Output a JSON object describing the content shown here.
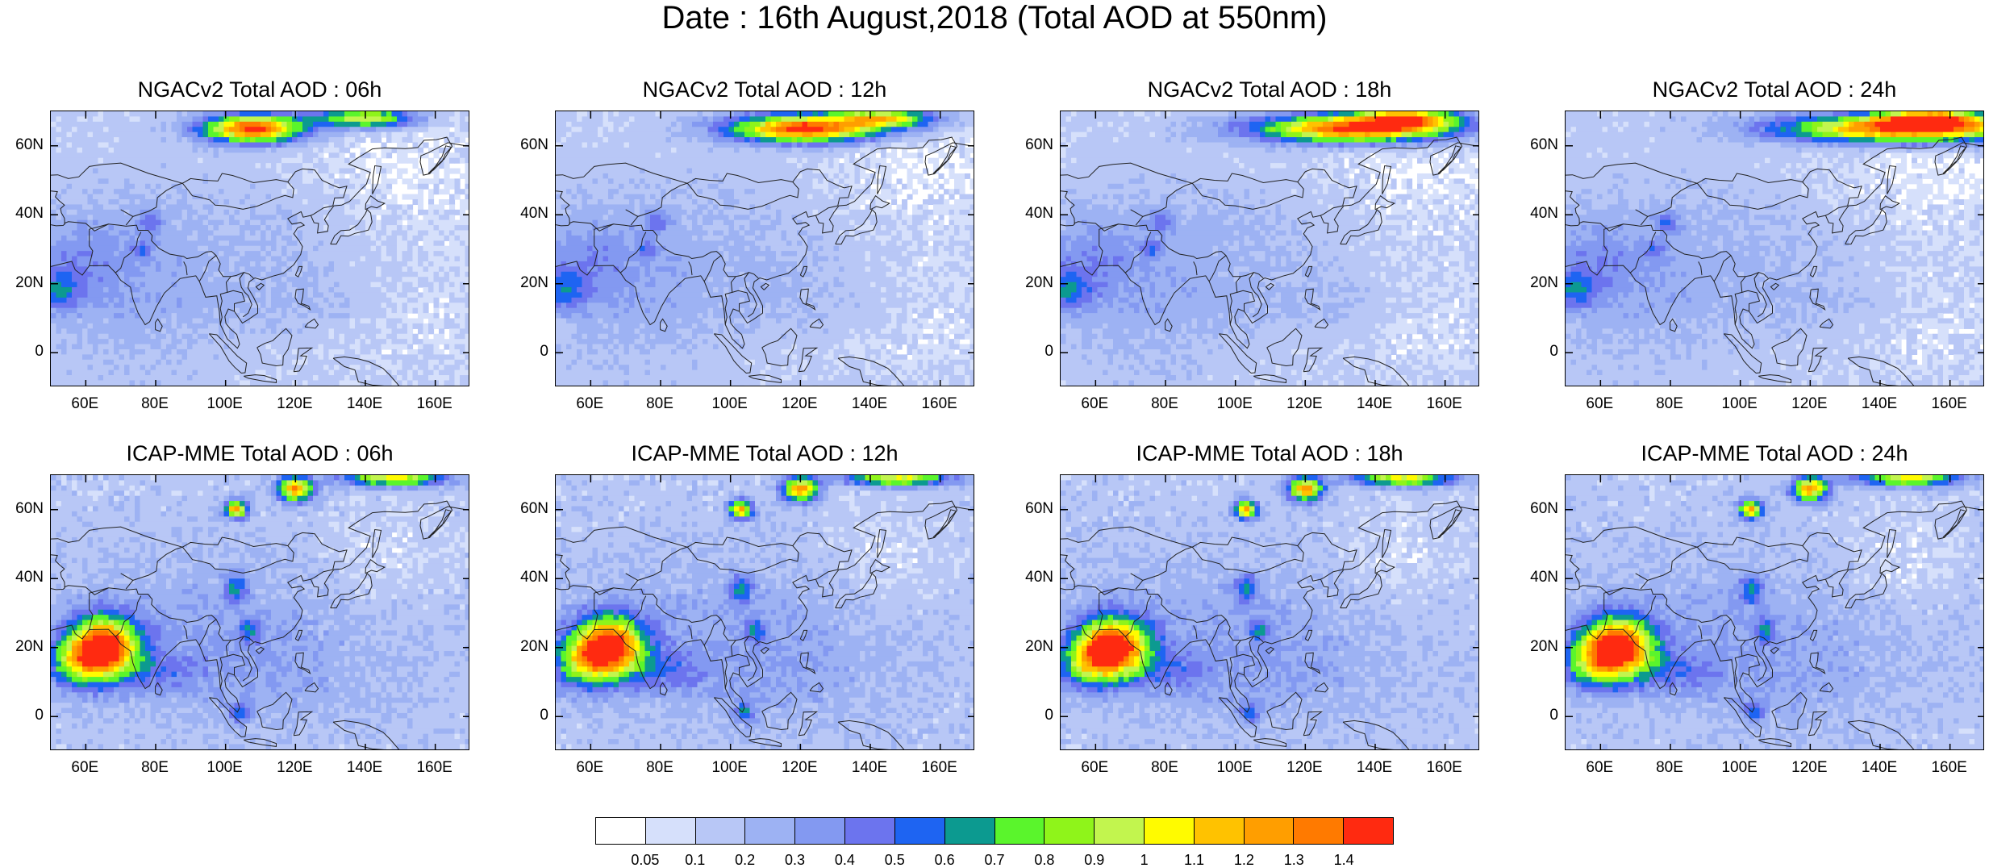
{
  "title": "Date : 16th August,2018 (Total AOD at 550nm)",
  "panels": [
    {
      "title": "NGACv2 Total AOD : 06h",
      "model": "ngac",
      "hour": 6
    },
    {
      "title": "NGACv2 Total AOD : 12h",
      "model": "ngac",
      "hour": 12
    },
    {
      "title": "NGACv2 Total AOD : 18h",
      "model": "ngac",
      "hour": 18
    },
    {
      "title": "NGACv2 Total AOD : 24h",
      "model": "ngac",
      "hour": 24
    },
    {
      "title": "ICAP-MME Total AOD : 06h",
      "model": "icap",
      "hour": 6
    },
    {
      "title": "ICAP-MME Total AOD : 12h",
      "model": "icap",
      "hour": 12
    },
    {
      "title": "ICAP-MME Total AOD : 18h",
      "model": "icap",
      "hour": 18
    },
    {
      "title": "ICAP-MME Total AOD : 24h",
      "model": "icap",
      "hour": 24
    }
  ],
  "map_extent": {
    "lon": [
      50,
      170
    ],
    "lat": [
      -10,
      70
    ]
  },
  "lon_ticks": [
    60,
    80,
    100,
    120,
    140,
    160
  ],
  "lon_tick_labels": [
    "60E",
    "80E",
    "100E",
    "120E",
    "140E",
    "160E"
  ],
  "lat_ticks": [
    0,
    20,
    40,
    60
  ],
  "lat_tick_labels": [
    "0",
    "20N",
    "40N",
    "60N"
  ],
  "colorbar": {
    "labels": [
      "0.05",
      "0.1",
      "0.2",
      "0.3",
      "0.4",
      "0.5",
      "0.6",
      "0.7",
      "0.8",
      "0.9",
      "1",
      "1.1",
      "1.2",
      "1.3",
      "1.4"
    ],
    "colors": [
      "#ffffff",
      "#d6e0fb",
      "#b8c7f6",
      "#9db2f3",
      "#8399f1",
      "#6c74ee",
      "#1e64f2",
      "#0c9a90",
      "#5af52c",
      "#8ff41a",
      "#c2f54e",
      "#fffb00",
      "#ffc200",
      "#ff9e00",
      "#ff7a00",
      "#ff2a10"
    ]
  }
}
